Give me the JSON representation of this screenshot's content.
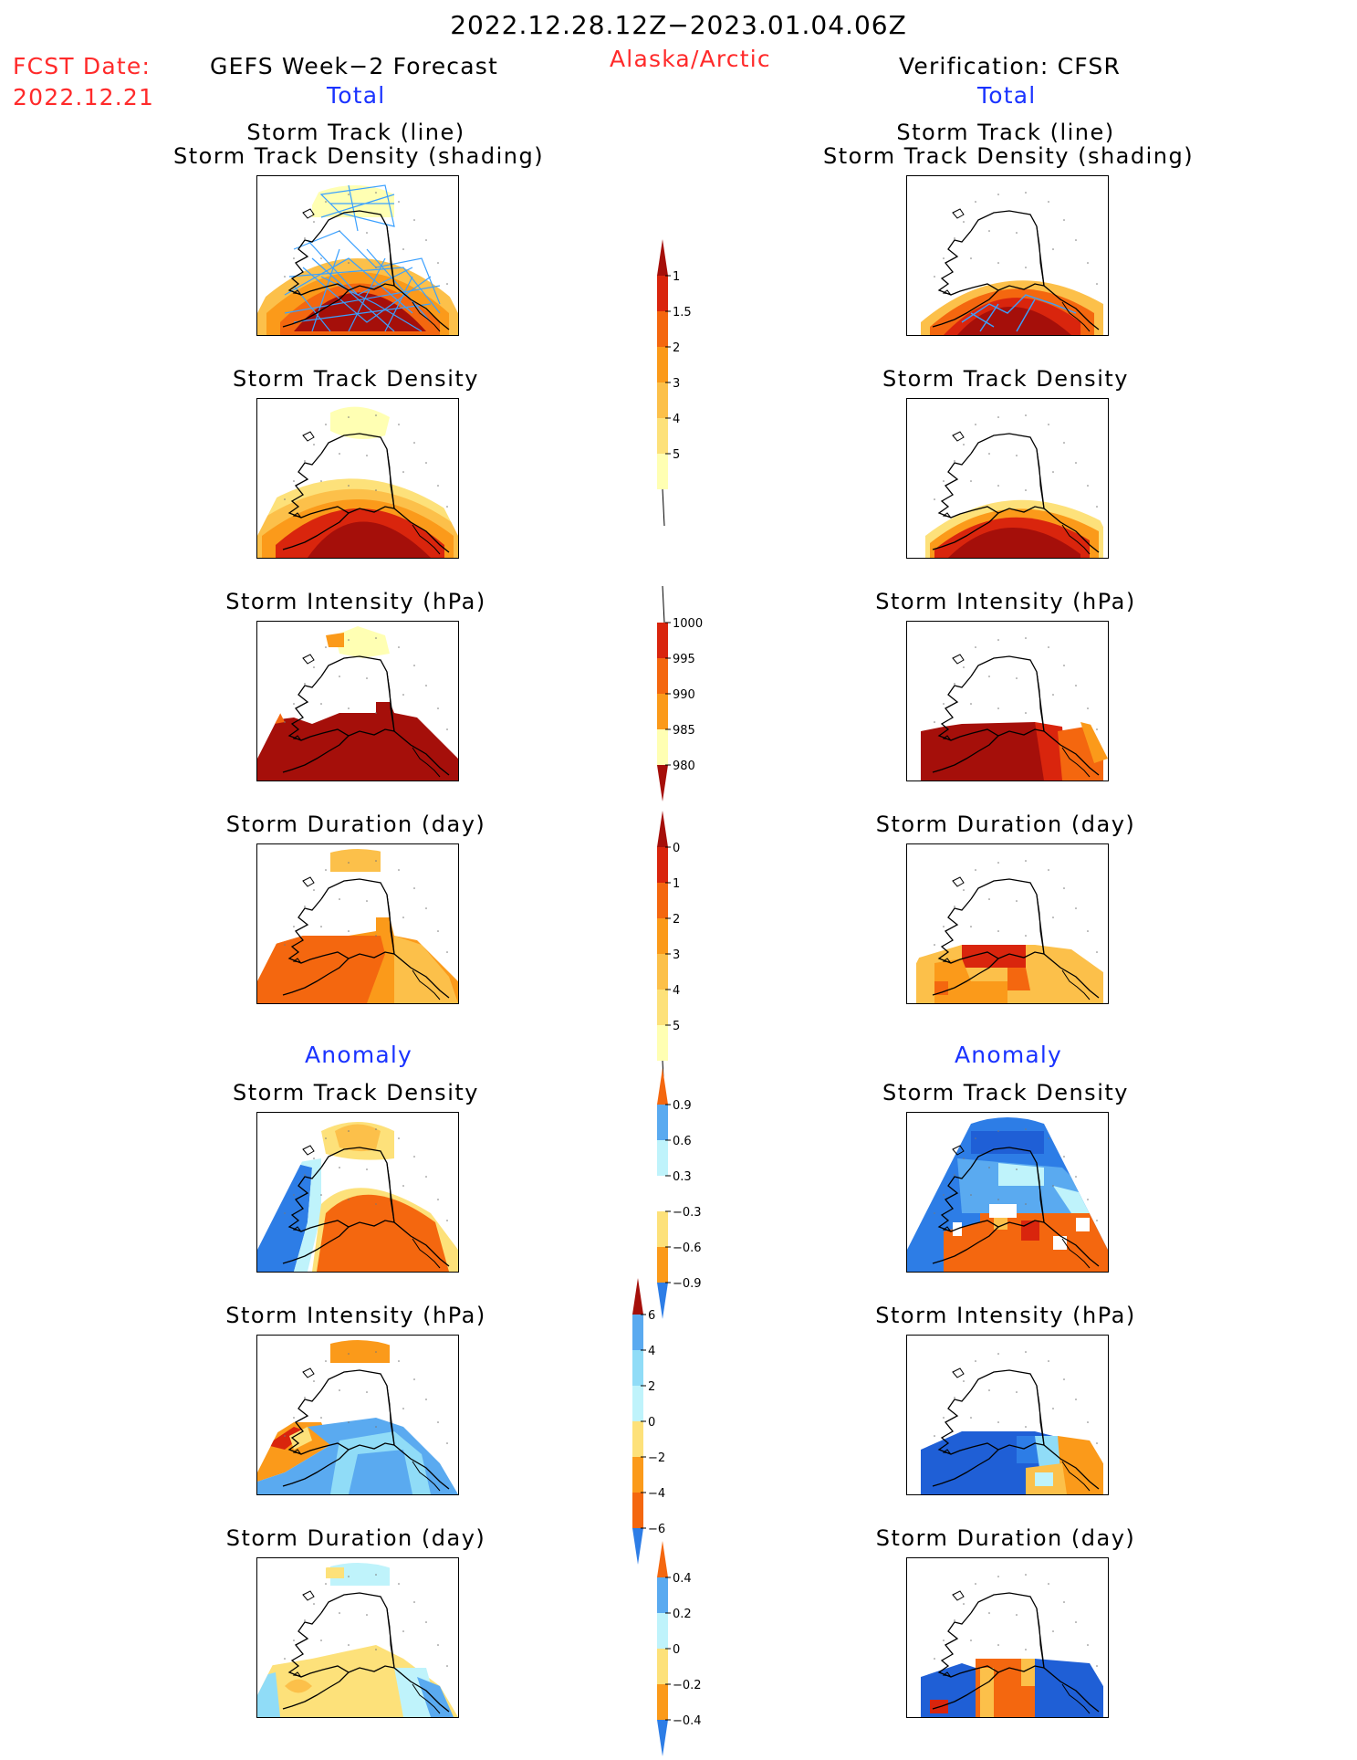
{
  "header": {
    "period": "2022.12.28.12Z−2023.01.04.06Z",
    "fcst_label": "FCST Date:",
    "fcst_date": "2022.12.21",
    "left_title": "GEFS Week−2 Forecast",
    "region": "Alaska/Arctic",
    "right_title": "Verification: CFSR",
    "total_label": "Total",
    "anomaly_label": "Anomaly"
  },
  "rows": [
    {
      "title_line1": "Storm Track (line)",
      "title_line2": "Storm Track Density (shading)"
    },
    {
      "title": "Storm Track Density"
    },
    {
      "title": "Storm Intensity (hPa)"
    },
    {
      "title": "Storm Duration (day)"
    },
    {
      "title": "Storm Track Density"
    },
    {
      "title": "Storm Intensity (hPa)"
    },
    {
      "title": "Storm Duration (day)"
    }
  ],
  "colors": {
    "c1": "#ffffb3",
    "c2": "#fde17a",
    "c3": "#fcc04a",
    "c4": "#fb9a1a",
    "c5": "#f4670f",
    "c6": "#d9250d",
    "c7": "#a50f0a",
    "b1": "#bff3fb",
    "b2": "#90dcf7",
    "b3": "#5aaaf0",
    "b4": "#2d7de6",
    "b5": "#1f5fd6",
    "track": "#3aa0ff"
  },
  "colorbars": [
    {
      "name": "density-total",
      "labels": [
        "1",
        "1.5",
        "2",
        "3",
        "4",
        "5"
      ],
      "colors": [
        "#ffffb3",
        "#fde17a",
        "#fcc04a",
        "#fb9a1a",
        "#f4670f",
        "#d9250d"
      ],
      "top_arrow": "#a50f0a",
      "bottom_arrow": "#ffffff"
    },
    {
      "name": "intensity-total",
      "labels": [
        "1000",
        "995",
        "990",
        "985",
        "980"
      ],
      "colors": [
        "#ffffb3",
        "#fb9a1a",
        "#f4670f",
        "#d9250d"
      ],
      "top_arrow": "#ffffff",
      "bottom_arrow": "#a50f0a"
    },
    {
      "name": "duration-total",
      "labels": [
        "0",
        "1",
        "2",
        "3",
        "4",
        "5"
      ],
      "colors": [
        "#ffffb3",
        "#fde17a",
        "#fcc04a",
        "#fb9a1a",
        "#f4670f",
        "#d9250d"
      ],
      "top_arrow": "#a50f0a",
      "bottom_arrow": "#ffffff"
    },
    {
      "name": "density-anomaly",
      "labels": [
        "0.9",
        "0.6",
        "0.3",
        "−0.3",
        "−0.6",
        "−0.9"
      ],
      "colors": [
        "#fb9a1a",
        "#fde17a",
        "#ffffff",
        "#bff3fb",
        "#5aaaf0"
      ],
      "top_arrow": "#f4670f",
      "bottom_arrow": "#2d7de6"
    },
    {
      "name": "intensity-anomaly",
      "labels": [
        "6",
        "4",
        "2",
        "0",
        "−2",
        "−4",
        "−6"
      ],
      "colors": [
        "#f4670f",
        "#fb9a1a",
        "#fde17a",
        "#bff3fb",
        "#90dcf7",
        "#5aaaf0"
      ],
      "top_arrow": "#a50f0a",
      "bottom_arrow": "#2d7de6"
    },
    {
      "name": "duration-anomaly",
      "labels": [
        "0.4",
        "0.2",
        "0",
        "−0.2",
        "−0.4"
      ],
      "colors": [
        "#fb9a1a",
        "#fde17a",
        "#bff3fb",
        "#5aaaf0"
      ],
      "top_arrow": "#f4670f",
      "bottom_arrow": "#2d7de6"
    }
  ]
}
